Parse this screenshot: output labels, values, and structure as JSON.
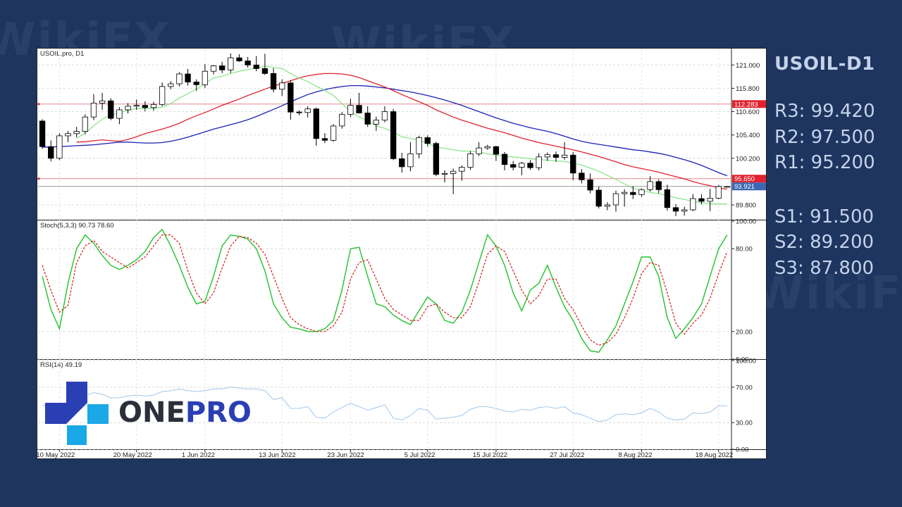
{
  "side_panel": {
    "title": "USOIL-D1",
    "resistance": [
      {
        "label": "R3:",
        "value": "99.420"
      },
      {
        "label": "R2:",
        "value": "97.500"
      },
      {
        "label": "R1:",
        "value": "95.200"
      }
    ],
    "support": [
      {
        "label": "S1:",
        "value": "91.500"
      },
      {
        "label": "S2:",
        "value": "89.200"
      },
      {
        "label": "S3:",
        "value": "87.800"
      }
    ]
  },
  "logo": {
    "part1": "ONE",
    "part2": "PRO"
  },
  "watermark": "WikiFX",
  "colors": {
    "background": "#1e3560",
    "side_text": "#c5d3ea",
    "ma_fast": "#7be37b",
    "ma_mid": "#e0232e",
    "ma_slow": "#1b22b5",
    "stoch_main": "#22c22a",
    "stoch_signal": "#d11b1b",
    "rsi": "#a9ccec",
    "logo_blue": "#2b3fb4",
    "logo_cyan": "#1aa8e6"
  },
  "chart_data": [
    {
      "type": "candlestick",
      "title": "USOIL.pro, D1",
      "ylim": [
        86.5,
        124.5
      ],
      "yticks": [
        "121.000",
        "115.800",
        "110.600",
        "105.400",
        "100.200",
        "89.800"
      ],
      "xticks": [
        "10 May 2022",
        "20 May 2022",
        "1 Jun 2022",
        "13 Jun 2022",
        "23 Jun 2022",
        "5 Jul 2022",
        "15 Jul 2022",
        "27 Jul 2022",
        "8 Aug 2022",
        "18 Aug 2022"
      ],
      "horizontal_lines": [
        {
          "value": 112.283,
          "label": "112.283"
        },
        {
          "value": 95.65,
          "label": "95.650"
        },
        {
          "value": 93.921,
          "label": "93.921"
        }
      ],
      "candles": [
        [
          108.5,
          108.9,
          102.3,
          102.8
        ],
        [
          102.8,
          104.2,
          99.5,
          100.2
        ],
        [
          100.2,
          105.8,
          99.8,
          105.2
        ],
        [
          105.2,
          106.3,
          103.8,
          105.7
        ],
        [
          105.7,
          107.2,
          104.9,
          106.2
        ],
        [
          106.2,
          110.0,
          105.6,
          109.4
        ],
        [
          109.4,
          114.5,
          108.7,
          112.5
        ],
        [
          112.5,
          114.8,
          111.0,
          113.0
        ],
        [
          113.0,
          113.6,
          108.7,
          109.1
        ],
        [
          109.1,
          111.6,
          107.8,
          111.0
        ],
        [
          111.0,
          112.5,
          110.2,
          111.8
        ],
        [
          111.8,
          113.3,
          111.0,
          112.0
        ],
        [
          112.0,
          112.9,
          110.7,
          111.5
        ],
        [
          111.5,
          112.8,
          110.8,
          112.2
        ],
        [
          112.2,
          117.1,
          111.8,
          116.2
        ],
        [
          116.2,
          117.4,
          115.6,
          116.8
        ],
        [
          116.8,
          119.4,
          116.2,
          119.0
        ],
        [
          119.0,
          120.1,
          116.4,
          117.2
        ],
        [
          117.2,
          117.8,
          115.2,
          116.6
        ],
        [
          116.6,
          121.2,
          115.9,
          119.6
        ],
        [
          119.6,
          121.0,
          118.9,
          120.8
        ],
        [
          120.8,
          121.7,
          119.2,
          119.9
        ],
        [
          119.9,
          123.6,
          119.2,
          122.6
        ],
        [
          122.6,
          123.4,
          121.7,
          121.9
        ],
        [
          121.9,
          122.8,
          120.4,
          121.0
        ],
        [
          121.0,
          123.0,
          119.6,
          120.2
        ],
        [
          120.2,
          123.5,
          118.8,
          119.1
        ],
        [
          119.1,
          120.3,
          114.9,
          115.6
        ],
        [
          115.6,
          117.8,
          114.1,
          117.0
        ],
        [
          117.0,
          117.6,
          108.8,
          110.5
        ],
        [
          110.5,
          110.9,
          109.8,
          110.4
        ],
        [
          110.4,
          111.8,
          109.3,
          111.2
        ],
        [
          111.2,
          111.5,
          103.0,
          104.6
        ],
        [
          104.6,
          105.8,
          103.6,
          104.2
        ],
        [
          104.2,
          107.8,
          103.9,
          107.4
        ],
        [
          107.4,
          110.5,
          106.8,
          110.0
        ],
        [
          110.0,
          113.5,
          109.4,
          112.0
        ],
        [
          112.0,
          114.8,
          110.2,
          110.3
        ],
        [
          110.3,
          111.8,
          107.2,
          107.8
        ],
        [
          107.8,
          109.5,
          106.3,
          108.7
        ],
        [
          108.7,
          111.8,
          108.2,
          110.6
        ],
        [
          110.6,
          111.2,
          99.8,
          100.1
        ],
        [
          100.1,
          101.4,
          97.0,
          98.3
        ],
        [
          98.3,
          103.8,
          97.3,
          101.2
        ],
        [
          101.2,
          105.2,
          100.2,
          104.8
        ],
        [
          104.8,
          105.3,
          102.8,
          103.5
        ],
        [
          103.5,
          103.9,
          96.2,
          96.6
        ],
        [
          96.6,
          97.5,
          94.8,
          96.8
        ],
        [
          96.8,
          97.9,
          92.2,
          97.3
        ],
        [
          97.3,
          98.6,
          95.2,
          98.2
        ],
        [
          98.2,
          101.8,
          97.6,
          101.2
        ],
        [
          101.2,
          103.8,
          100.7,
          102.5
        ],
        [
          102.5,
          103.2,
          102.1,
          102.8
        ],
        [
          102.8,
          103.0,
          99.6,
          101.1
        ],
        [
          101.1,
          101.6,
          97.5,
          98.8
        ],
        [
          98.8,
          99.6,
          97.5,
          98.2
        ],
        [
          98.2,
          99.4,
          96.4,
          99.1
        ],
        [
          99.1,
          99.8,
          97.6,
          98.1
        ],
        [
          98.1,
          101.3,
          97.5,
          100.5
        ],
        [
          100.5,
          101.5,
          99.6,
          101.0
        ],
        [
          101.0,
          101.7,
          99.4,
          100.4
        ],
        [
          100.4,
          103.8,
          99.9,
          100.9
        ],
        [
          100.9,
          101.6,
          95.3,
          96.9
        ],
        [
          96.9,
          97.8,
          94.6,
          95.4
        ],
        [
          95.4,
          96.8,
          92.4,
          93.1
        ],
        [
          93.1,
          93.9,
          89.0,
          89.5
        ],
        [
          89.5,
          90.4,
          88.6,
          89.8
        ],
        [
          89.8,
          93.0,
          88.3,
          92.3
        ],
        [
          92.3,
          93.3,
          89.4,
          92.6
        ],
        [
          92.6,
          94.0,
          91.1,
          92.1
        ],
        [
          92.1,
          93.5,
          91.6,
          93.2
        ],
        [
          93.2,
          96.2,
          92.8,
          95.0
        ],
        [
          95.0,
          95.5,
          92.4,
          93.2
        ],
        [
          93.2,
          94.3,
          88.5,
          89.2
        ],
        [
          89.2,
          90.0,
          87.3,
          88.4
        ],
        [
          88.4,
          89.4,
          87.4,
          88.7
        ],
        [
          88.7,
          92.2,
          88.4,
          91.2
        ],
        [
          91.2,
          92.2,
          89.9,
          90.6
        ],
        [
          90.6,
          93.4,
          88.4,
          91.3
        ],
        [
          91.3,
          94.2,
          91.1,
          93.9
        ],
        [
          93.9,
          94.0,
          93.7,
          93.9
        ]
      ],
      "ma_fast": [
        null,
        null,
        null,
        null,
        104.7,
        105.7,
        107.5,
        108.9,
        109.9,
        110.3,
        110.9,
        111.3,
        111.3,
        111.3,
        111.6,
        112.4,
        113.6,
        114.6,
        115.6,
        116.9,
        118.1,
        118.5,
        119.1,
        119.6,
        120.0,
        120.3,
        120.7,
        120.5,
        120.2,
        119.1,
        118.1,
        117.3,
        116.3,
        115.3,
        114.2,
        112.4,
        110.6,
        109.4,
        108.6,
        107.4,
        106.9,
        106.0,
        105.0,
        104.6,
        104.3,
        103.5,
        102.7,
        102.4,
        102.1,
        101.8,
        101.8,
        101.6,
        101.2,
        100.9,
        100.7,
        100.5,
        100.3,
        100.1,
        99.9,
        99.8,
        99.6,
        99.5,
        99.1,
        98.7,
        98.0,
        97.3,
        96.4,
        95.5,
        94.5,
        93.5,
        93.0,
        92.6,
        92.3,
        91.9,
        91.4,
        91.0,
        90.6,
        90.3,
        90.1,
        90.0,
        90.0
      ],
      "ma_mid": [
        null,
        null,
        null,
        null,
        103.8,
        103.9,
        104.1,
        104.3,
        104.1,
        104.0,
        104.4,
        105.0,
        105.7,
        106.2,
        106.7,
        107.3,
        108.0,
        108.9,
        109.7,
        110.4,
        111.2,
        112.0,
        112.7,
        113.4,
        114.2,
        114.9,
        115.6,
        116.3,
        116.9,
        117.5,
        118.1,
        118.6,
        118.9,
        119.1,
        119.1,
        119.0,
        118.7,
        118.2,
        117.5,
        116.8,
        116.1,
        115.3,
        114.4,
        113.6,
        112.8,
        112.0,
        111.0,
        110.2,
        109.4,
        108.7,
        108.1,
        107.5,
        106.9,
        106.4,
        105.9,
        105.3,
        104.7,
        104.2,
        103.7,
        103.3,
        102.9,
        102.5,
        102.1,
        101.6,
        101.1,
        100.6,
        100.0,
        99.4,
        98.8,
        98.3,
        97.9,
        97.5,
        97.1,
        96.6,
        96.1,
        95.6,
        95.0,
        94.5,
        94.1,
        93.6,
        93.3
      ],
      "ma_slow": [
        102.7,
        102.7,
        102.8,
        102.9,
        103.0,
        103.1,
        103.2,
        103.4,
        103.6,
        103.8,
        103.8,
        103.7,
        103.6,
        103.6,
        103.7,
        104.0,
        104.4,
        104.9,
        105.5,
        106.1,
        106.7,
        107.2,
        107.7,
        108.2,
        108.8,
        109.5,
        110.3,
        111.1,
        111.9,
        112.8,
        113.6,
        114.4,
        115.0,
        115.5,
        115.9,
        116.2,
        116.4,
        116.4,
        116.3,
        116.1,
        115.9,
        115.6,
        115.3,
        115.0,
        114.6,
        114.2,
        113.7,
        113.2,
        112.6,
        112.0,
        111.3,
        110.6,
        109.9,
        109.2,
        108.6,
        108.0,
        107.5,
        107.0,
        106.6,
        106.2,
        105.7,
        105.1,
        104.5,
        104.0,
        103.6,
        103.3,
        103.0,
        102.7,
        102.4,
        102.1,
        101.9,
        101.6,
        101.3,
        100.9,
        100.4,
        99.9,
        99.3,
        98.6,
        97.8,
        97.0,
        96.3
      ]
    },
    {
      "type": "line",
      "title": "Stoch(5,3,3) 90.73 78.60",
      "ylim": [
        0,
        100
      ],
      "yticks": [
        "100.00",
        "80.00",
        "20.00",
        "0.00"
      ],
      "series": [
        {
          "values": [
            60,
            36,
            22,
            55,
            80,
            90,
            84,
            75,
            68,
            65,
            68,
            72,
            78,
            88,
            94,
            82,
            68,
            52,
            40,
            42,
            60,
            82,
            90,
            89,
            87,
            80,
            64,
            40,
            30,
            23,
            22,
            20,
            20,
            22,
            28,
            50,
            80,
            81,
            60,
            40,
            38,
            32,
            28,
            25,
            35,
            45,
            40,
            28,
            26,
            34,
            50,
            70,
            90,
            82,
            68,
            48,
            35,
            50,
            55,
            68,
            52,
            38,
            28,
            15,
            6,
            5,
            14,
            24,
            40,
            56,
            74,
            74,
            60,
            30,
            15,
            22,
            30,
            40,
            60,
            80,
            90
          ]
        },
        {
          "values": [
            68,
            50,
            34,
            39,
            70,
            82,
            86,
            78,
            74,
            70,
            66,
            70,
            74,
            82,
            90,
            90,
            84,
            64,
            48,
            40,
            48,
            66,
            82,
            89,
            88,
            84,
            76,
            60,
            44,
            30,
            25,
            22,
            20,
            20,
            24,
            34,
            58,
            70,
            72,
            58,
            44,
            36,
            32,
            28,
            28,
            38,
            40,
            34,
            30,
            30,
            38,
            56,
            76,
            82,
            78,
            64,
            50,
            40,
            46,
            58,
            58,
            44,
            36,
            24,
            14,
            10,
            12,
            18,
            30,
            44,
            62,
            70,
            68,
            48,
            26,
            18,
            26,
            32,
            44,
            62,
            78
          ]
        }
      ]
    },
    {
      "type": "line",
      "title": "RSI(14) 49.19",
      "ylim": [
        0,
        100
      ],
      "yticks": [
        "100.00",
        "70.00",
        "30.00",
        "0.00"
      ],
      "series": [
        {
          "values": [
            50,
            46,
            48,
            52,
            55,
            60,
            64,
            62,
            58,
            58,
            60,
            61,
            60,
            61,
            65,
            66,
            68,
            66,
            65,
            66,
            68,
            68,
            70,
            69,
            68,
            68,
            66,
            56,
            58,
            46,
            46,
            48,
            36,
            35,
            42,
            47,
            52,
            48,
            44,
            47,
            50,
            35,
            33,
            38,
            46,
            44,
            34,
            35,
            36,
            38,
            45,
            48,
            48,
            46,
            43,
            42,
            45,
            44,
            47,
            48,
            46,
            48,
            41,
            39,
            35,
            31,
            33,
            39,
            40,
            39,
            41,
            46,
            42,
            35,
            33,
            34,
            41,
            40,
            42,
            49,
            49
          ]
        }
      ]
    }
  ]
}
